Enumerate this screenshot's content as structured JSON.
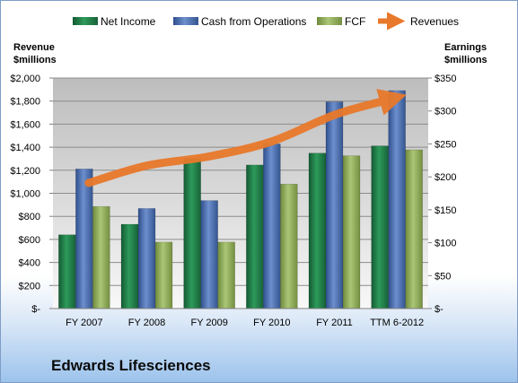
{
  "chart_data": {
    "type": "bar",
    "title": "Edwards Lifesciences",
    "categories": [
      "FY 2007",
      "FY 2008",
      "FY 2009",
      "FY 2010",
      "FY 2011",
      "TTM 6-2012"
    ],
    "left_axis": {
      "label_line1": "Revenue",
      "label_line2": "$millions",
      "ylim": [
        0,
        2000
      ],
      "ticks": [
        0,
        200,
        400,
        600,
        800,
        1000,
        1200,
        1400,
        1600,
        1800,
        2000
      ],
      "tick_labels": [
        "$-",
        "$200",
        "$400",
        "$600",
        "$800",
        "$1,000",
        "$1,200",
        "$1,400",
        "$1,600",
        "$1,800",
        "$2,000"
      ]
    },
    "right_axis": {
      "label_line1": "Earnings",
      "label_line2": "$millions",
      "ylim": [
        0,
        350
      ],
      "ticks": [
        0,
        50,
        100,
        150,
        200,
        250,
        300,
        350
      ],
      "tick_labels": [
        "$-",
        "$50",
        "$100",
        "$150",
        "$200",
        "$250",
        "$300",
        "$350"
      ]
    },
    "series": [
      {
        "name": "Net Income",
        "type": "bar",
        "axis": "right",
        "color": "#1f7a45",
        "values": [
          112,
          128,
          228,
          218,
          236,
          247
        ]
      },
      {
        "name": "Cash from Operations",
        "type": "bar",
        "axis": "right",
        "color": "#4a6fae",
        "values": [
          212,
          152,
          164,
          250,
          314,
          331
        ]
      },
      {
        "name": "FCF",
        "type": "bar",
        "axis": "right",
        "color": "#8fac55",
        "values": [
          155,
          101,
          101,
          189,
          232,
          241
        ]
      },
      {
        "name": "Revenues",
        "type": "line",
        "axis": "left",
        "color": "#e8792b",
        "values": [
          1090,
          1240,
          1320,
          1450,
          1680,
          1810
        ]
      }
    ],
    "grid": true,
    "legend": "top"
  }
}
